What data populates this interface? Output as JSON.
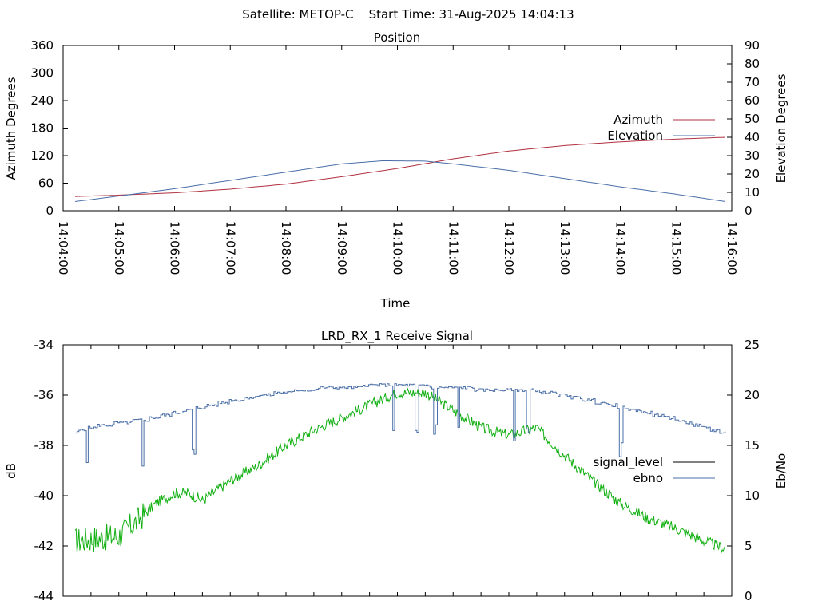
{
  "header": {
    "title": "Satellite: METOP-C    Start Time: 31-Aug-2025 14:04:13"
  },
  "colors": {
    "azimuth": "#b03040",
    "elevation": "#4a6fa8",
    "signal_level_legend": "#000000",
    "signal_level_trace": "#12b012",
    "ebno": "#4a6fa8",
    "axes": "#000000",
    "background": "#ffffff"
  },
  "chart_data": [
    {
      "type": "line",
      "title": "Position",
      "xlabel": "Time",
      "ylabel": "Azimuth Degrees",
      "y2label": "Elevation Degrees",
      "x_ticks": [
        "14:04:00",
        "14:05:00",
        "14:06:00",
        "14:07:00",
        "14:08:00",
        "14:09:00",
        "14:10:00",
        "14:11:00",
        "14:12:00",
        "14:13:00",
        "14:14:00",
        "14:15:00",
        "14:16:00"
      ],
      "xlim": [
        "14:04:00",
        "14:16:00"
      ],
      "ylim": [
        0,
        360
      ],
      "y2lim": [
        0,
        90
      ],
      "y_ticks": [
        "0",
        "60",
        "120",
        "180",
        "240",
        "300",
        "360"
      ],
      "y2_ticks": [
        "0",
        "10",
        "20",
        "30",
        "40",
        "50",
        "60",
        "70",
        "80",
        "90"
      ],
      "legend_position": "right",
      "series": [
        {
          "name": "Azimuth",
          "axis": "y",
          "x": [
            "14:04:13",
            "14:05:00",
            "14:06:00",
            "14:07:00",
            "14:08:00",
            "14:09:00",
            "14:10:00",
            "14:11:00",
            "14:12:00",
            "14:13:00",
            "14:14:00",
            "14:15:00",
            "14:15:53"
          ],
          "values": [
            31,
            34,
            39,
            47,
            58,
            74,
            92,
            113,
            130,
            142,
            150,
            156,
            160
          ]
        },
        {
          "name": "Elevation",
          "axis": "y2",
          "x": [
            "14:04:13",
            "14:05:00",
            "14:06:00",
            "14:07:00",
            "14:08:00",
            "14:09:00",
            "14:09:45",
            "14:10:30",
            "14:11:00",
            "14:12:00",
            "14:13:00",
            "14:14:00",
            "14:15:00",
            "14:15:53"
          ],
          "values": [
            5,
            8,
            12,
            16.5,
            21,
            25.5,
            27.2,
            27,
            25.5,
            22,
            17.5,
            13,
            9,
            5
          ]
        }
      ]
    },
    {
      "type": "line",
      "title": "LRD_RX_1 Receive Signal",
      "ylabel": "dB",
      "y2label": "Eb/No",
      "xlim": [
        "14:04:00",
        "14:16:00"
      ],
      "ylim": [
        -44,
        -34
      ],
      "y2lim": [
        0,
        25
      ],
      "y_ticks": [
        "-34",
        "-36",
        "-38",
        "-40",
        "-42",
        "-44"
      ],
      "y2_ticks": [
        "0",
        "5",
        "10",
        "15",
        "20",
        "25"
      ],
      "legend_position": "right",
      "series": [
        {
          "name": "signal_level",
          "axis": "y",
          "x": [
            "14:04:13",
            "14:05:00",
            "14:05:20",
            "14:05:40",
            "14:06:00",
            "14:06:15",
            "14:06:30",
            "14:07:00",
            "14:07:30",
            "14:08:00",
            "14:08:30",
            "14:09:00",
            "14:09:30",
            "14:10:00",
            "14:10:30",
            "14:11:00",
            "14:11:30",
            "14:12:00",
            "14:12:30",
            "14:13:00",
            "14:13:30",
            "14:14:00",
            "14:14:30",
            "14:15:00",
            "14:15:30",
            "14:15:53"
          ],
          "values": [
            -41.8,
            -41.6,
            -41.0,
            -40.3,
            -39.9,
            -39.9,
            -40.2,
            -39.4,
            -38.8,
            -38.0,
            -37.4,
            -36.9,
            -36.4,
            -35.9,
            -35.9,
            -36.6,
            -37.3,
            -37.6,
            -37.3,
            -38.4,
            -39.4,
            -40.3,
            -40.9,
            -41.3,
            -41.8,
            -42.1
          ]
        },
        {
          "name": "ebno",
          "axis": "y2",
          "x": [
            "14:04:13",
            "14:04:30",
            "14:05:00",
            "14:05:30",
            "14:06:00",
            "14:06:30",
            "14:07:00",
            "14:07:30",
            "14:08:00",
            "14:08:30",
            "14:09:00",
            "14:09:30",
            "14:10:00",
            "14:10:30",
            "14:11:00",
            "14:11:30",
            "14:12:00",
            "14:12:30",
            "14:13:00",
            "14:13:30",
            "14:14:00",
            "14:14:30",
            "14:15:00",
            "14:15:30",
            "14:15:53"
          ],
          "values": [
            16.3,
            16.8,
            17.2,
            17.6,
            18.2,
            18.8,
            19.4,
            19.9,
            20.3,
            20.6,
            20.8,
            20.9,
            20.9,
            20.9,
            20.7,
            20.6,
            20.5,
            20.4,
            20.0,
            19.4,
            18.8,
            18.2,
            17.6,
            16.8,
            16.2
          ]
        }
      ]
    }
  ]
}
